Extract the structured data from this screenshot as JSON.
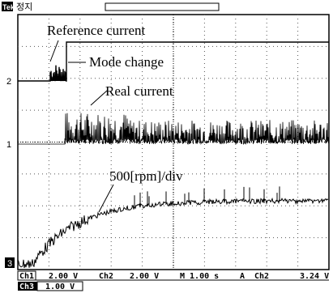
{
  "header": {
    "brand": "Tek",
    "status": "정지"
  },
  "annotations": {
    "reference": "Reference current",
    "mode": "Mode change",
    "real": "Real current",
    "speed": "500[rpm]/div"
  },
  "channel_markers": [
    "2",
    "1",
    "3"
  ],
  "status_bar": {
    "row1": [
      "Ch1",
      "2.00 V",
      "Ch2",
      "2.00 V",
      "M 1.00 s",
      "A",
      "Ch2",
      "3.24 V"
    ],
    "row2": [
      "Ch3",
      "1.00 V"
    ]
  }
}
